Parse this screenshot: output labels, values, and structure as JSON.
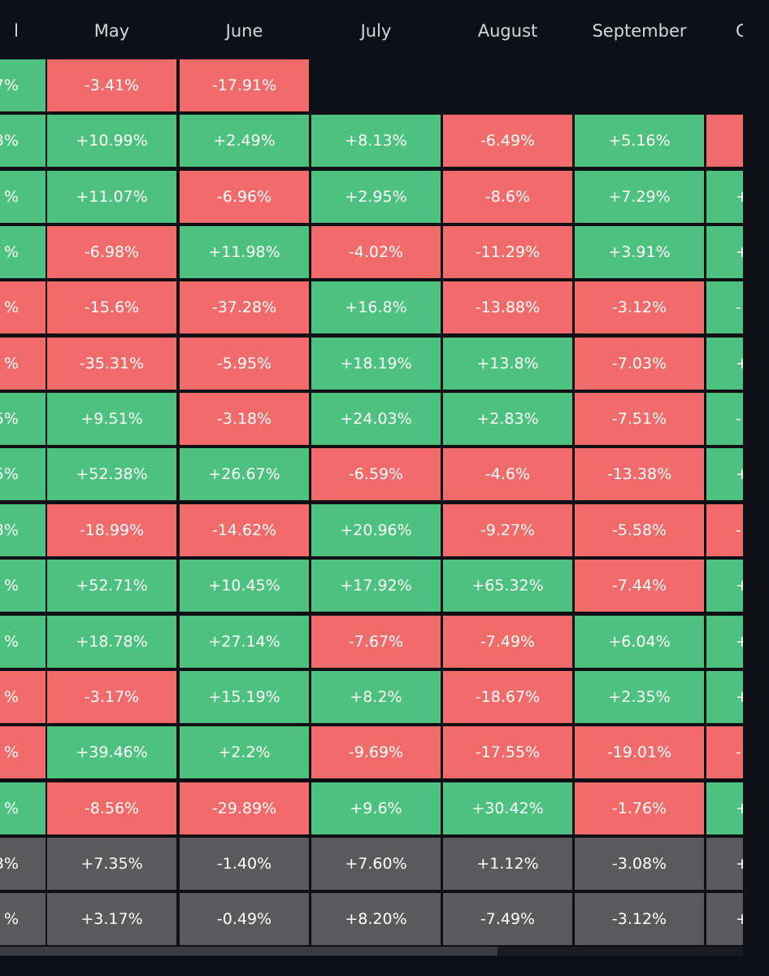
{
  "header": {
    "columns": [
      "l",
      "May",
      "June",
      "July",
      "August",
      "September",
      "C"
    ]
  },
  "table": {
    "rows": [
      [
        {
          "text": "7%",
          "color": "#4cc27e"
        },
        {
          "text": "-3.41%",
          "color": "#f26b6b"
        },
        {
          "text": "-17.91%",
          "color": "#f26b6b"
        }
      ],
      [
        {
          "text": "3%",
          "color": "#4cc27e"
        },
        {
          "text": "+10.99%",
          "color": "#4cc27e"
        },
        {
          "text": "+2.49%",
          "color": "#4cc27e"
        },
        {
          "text": "+8.13%",
          "color": "#4cc27e"
        },
        {
          "text": "-6.49%",
          "color": "#f26b6b"
        },
        {
          "text": "+5.16%",
          "color": "#4cc27e"
        },
        {
          "color": "#f26b6b"
        }
      ],
      [
        {
          "text": "%",
          "color": "#4cc27e"
        },
        {
          "text": "+11.07%",
          "color": "#4cc27e"
        },
        {
          "text": "-6.96%",
          "color": "#f26b6b"
        },
        {
          "text": "+2.95%",
          "color": "#4cc27e"
        },
        {
          "text": "-8.6%",
          "color": "#f26b6b"
        },
        {
          "text": "+7.29%",
          "color": "#4cc27e"
        },
        {
          "text": "+",
          "color": "#4cc27e"
        }
      ],
      [
        {
          "text": "%",
          "color": "#4cc27e"
        },
        {
          "text": "-6.98%",
          "color": "#f26b6b"
        },
        {
          "text": "+11.98%",
          "color": "#4cc27e"
        },
        {
          "text": "-4.02%",
          "color": "#f26b6b"
        },
        {
          "text": "-11.29%",
          "color": "#f26b6b"
        },
        {
          "text": "+3.91%",
          "color": "#4cc27e"
        },
        {
          "text": "+",
          "color": "#4cc27e"
        }
      ],
      [
        {
          "text": "%",
          "color": "#f26b6b"
        },
        {
          "text": "-15.6%",
          "color": "#f26b6b"
        },
        {
          "text": "-37.28%",
          "color": "#f26b6b"
        },
        {
          "text": "+16.8%",
          "color": "#4cc27e"
        },
        {
          "text": "-13.88%",
          "color": "#f26b6b"
        },
        {
          "text": "-3.12%",
          "color": "#f26b6b"
        },
        {
          "text": "-",
          "color": "#4cc27e"
        }
      ],
      [
        {
          "text": "%",
          "color": "#f26b6b"
        },
        {
          "text": "-35.31%",
          "color": "#f26b6b"
        },
        {
          "text": "-5.95%",
          "color": "#f26b6b"
        },
        {
          "text": "+18.19%",
          "color": "#4cc27e"
        },
        {
          "text": "+13.8%",
          "color": "#4cc27e"
        },
        {
          "text": "-7.03%",
          "color": "#f26b6b"
        },
        {
          "text": "+",
          "color": "#4cc27e"
        }
      ],
      [
        {
          "text": "5%",
          "color": "#4cc27e"
        },
        {
          "text": "+9.51%",
          "color": "#4cc27e"
        },
        {
          "text": "-3.18%",
          "color": "#f26b6b"
        },
        {
          "text": "+24.03%",
          "color": "#4cc27e"
        },
        {
          "text": "+2.83%",
          "color": "#4cc27e"
        },
        {
          "text": "-7.51%",
          "color": "#f26b6b"
        },
        {
          "text": "-",
          "color": "#4cc27e"
        }
      ],
      [
        {
          "text": "5%",
          "color": "#4cc27e"
        },
        {
          "text": "+52.38%",
          "color": "#4cc27e"
        },
        {
          "text": "+26.67%",
          "color": "#4cc27e"
        },
        {
          "text": "-6.59%",
          "color": "#f26b6b"
        },
        {
          "text": "-4.6%",
          "color": "#f26b6b"
        },
        {
          "text": "-13.38%",
          "color": "#f26b6b"
        },
        {
          "text": "+",
          "color": "#4cc27e"
        }
      ],
      [
        {
          "text": "3%",
          "color": "#4cc27e"
        },
        {
          "text": "-18.99%",
          "color": "#f26b6b"
        },
        {
          "text": "-14.62%",
          "color": "#f26b6b"
        },
        {
          "text": "+20.96%",
          "color": "#4cc27e"
        },
        {
          "text": "-9.27%",
          "color": "#f26b6b"
        },
        {
          "text": "-5.58%",
          "color": "#f26b6b"
        },
        {
          "text": "-",
          "color": "#f26b6b"
        }
      ],
      [
        {
          "text": "%",
          "color": "#4cc27e"
        },
        {
          "text": "+52.71%",
          "color": "#4cc27e"
        },
        {
          "text": "+10.45%",
          "color": "#4cc27e"
        },
        {
          "text": "+17.92%",
          "color": "#4cc27e"
        },
        {
          "text": "+65.32%",
          "color": "#4cc27e"
        },
        {
          "text": "-7.44%",
          "color": "#f26b6b"
        },
        {
          "text": "+",
          "color": "#4cc27e"
        }
      ],
      [
        {
          "text": "%",
          "color": "#4cc27e"
        },
        {
          "text": "+18.78%",
          "color": "#4cc27e"
        },
        {
          "text": "+27.14%",
          "color": "#4cc27e"
        },
        {
          "text": "-7.67%",
          "color": "#f26b6b"
        },
        {
          "text": "-7.49%",
          "color": "#f26b6b"
        },
        {
          "text": "+6.04%",
          "color": "#4cc27e"
        },
        {
          "text": "+",
          "color": "#4cc27e"
        }
      ],
      [
        {
          "text": "%",
          "color": "#f26b6b"
        },
        {
          "text": "-3.17%",
          "color": "#f26b6b"
        },
        {
          "text": "+15.19%",
          "color": "#4cc27e"
        },
        {
          "text": "+8.2%",
          "color": "#4cc27e"
        },
        {
          "text": "-18.67%",
          "color": "#f26b6b"
        },
        {
          "text": "+2.35%",
          "color": "#4cc27e"
        },
        {
          "text": "+",
          "color": "#4cc27e"
        }
      ],
      [
        {
          "text": "%",
          "color": "#f26b6b"
        },
        {
          "text": "+39.46%",
          "color": "#4cc27e"
        },
        {
          "text": "+2.2%",
          "color": "#4cc27e"
        },
        {
          "text": "-9.69%",
          "color": "#f26b6b"
        },
        {
          "text": "-17.55%",
          "color": "#f26b6b"
        },
        {
          "text": "-19.01%",
          "color": "#f26b6b"
        },
        {
          "text": "-",
          "color": "#f26b6b"
        }
      ],
      [
        {
          "text": "%",
          "color": "#4cc27e"
        },
        {
          "text": "-8.56%",
          "color": "#f26b6b"
        },
        {
          "text": "-29.89%",
          "color": "#f26b6b"
        },
        {
          "text": "+9.6%",
          "color": "#4cc27e"
        },
        {
          "text": "+30.42%",
          "color": "#4cc27e"
        },
        {
          "text": "-1.76%",
          "color": "#f26b6b"
        },
        {
          "text": "+",
          "color": "#4cc27e"
        }
      ],
      [
        {
          "text": "3%",
          "color": "#5a5a5c"
        },
        {
          "text": "+7.35%",
          "color": "#5a5a5c"
        },
        {
          "text": "-1.40%",
          "color": "#5a5a5c"
        },
        {
          "text": "+7.60%",
          "color": "#5a5a5c"
        },
        {
          "text": "+1.12%",
          "color": "#5a5a5c"
        },
        {
          "text": "-3.08%",
          "color": "#5a5a5c"
        },
        {
          "text": "+",
          "color": "#5a5a5c"
        }
      ],
      [
        {
          "text": "%",
          "color": "#5a5a5c"
        },
        {
          "text": "+3.17%",
          "color": "#5a5a5c"
        },
        {
          "text": "-0.49%",
          "color": "#5a5a5c"
        },
        {
          "text": "+8.20%",
          "color": "#5a5a5c"
        },
        {
          "text": "-7.49%",
          "color": "#5a5a5c"
        },
        {
          "text": "-3.12%",
          "color": "#5a5a5c"
        },
        {
          "text": "+",
          "color": "#5a5a5c"
        }
      ]
    ]
  }
}
